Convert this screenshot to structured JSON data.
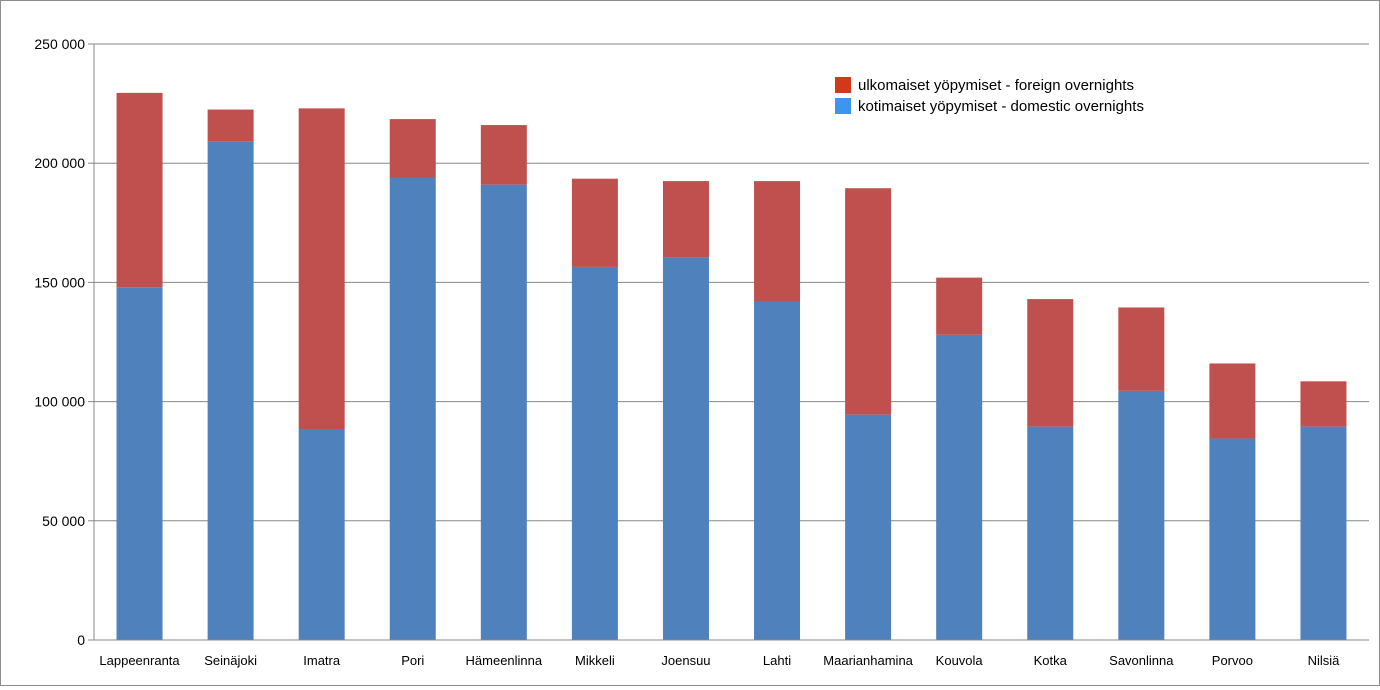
{
  "chart_data": {
    "type": "bar",
    "stacked": true,
    "categories": [
      "Lappeenranta",
      "Seinäjoki",
      "Imatra",
      "Pori",
      "Hämeenlinna",
      "Mikkeli",
      "Joensuu",
      "Lahti",
      "Maarianhamina",
      "Kouvola",
      "Kotka",
      "Savonlinna",
      "Porvoo",
      "Nilsiä"
    ],
    "series": [
      {
        "name": "kotimaiset yöpymiset - domestic overnights",
        "color": "#4f81bd",
        "legend_color": "#3d95f0",
        "values": [
          148000,
          209000,
          88500,
          194000,
          191000,
          156500,
          160500,
          142000,
          94500,
          128000,
          89500,
          104500,
          84500,
          89500
        ]
      },
      {
        "name": "ulkomaiset yöpymiset - foreign overnights",
        "color": "#c0504d",
        "legend_color": "#d1391b",
        "values": [
          81500,
          13500,
          134500,
          24500,
          25000,
          37000,
          32000,
          50500,
          95000,
          24000,
          53500,
          35000,
          31500,
          19000
        ]
      }
    ],
    "ylim": [
      0,
      250000
    ],
    "y_ticks": [
      0,
      50000,
      100000,
      150000,
      200000,
      250000
    ],
    "y_tick_labels": [
      "0",
      "50 000",
      "100 000",
      "150 000",
      "200 000",
      "250 000"
    ],
    "grid": true,
    "legend_position": "top-right",
    "title": "",
    "xlabel": "",
    "ylabel": ""
  }
}
